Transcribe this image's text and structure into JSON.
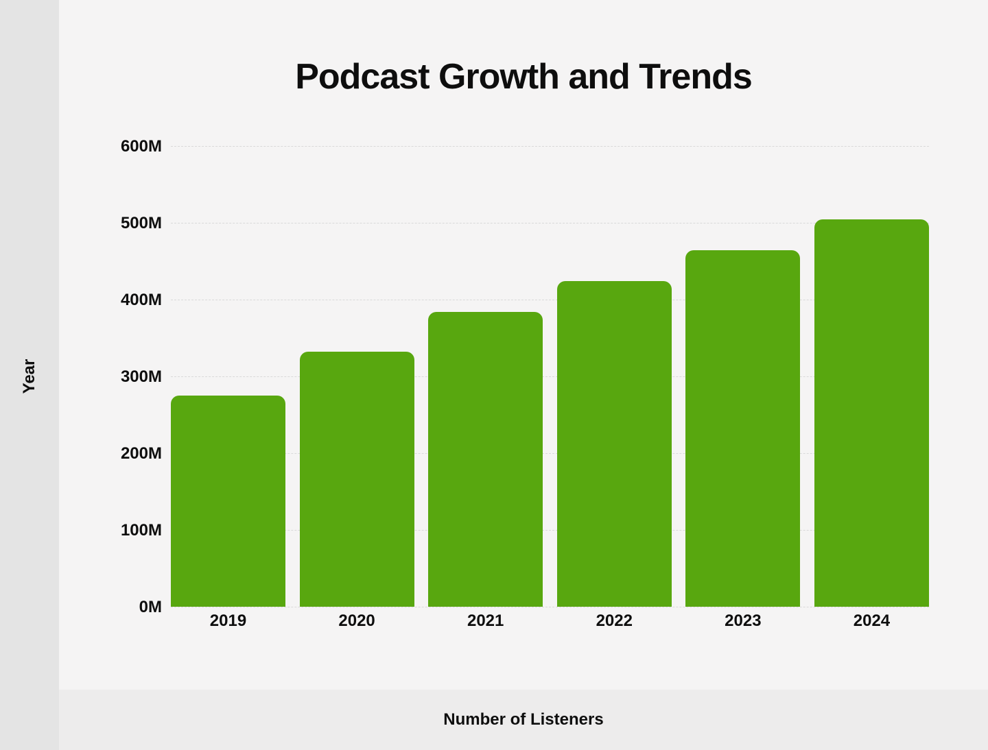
{
  "page": {
    "title": "Podcast Growth and Trends"
  },
  "colors": {
    "background": "#f5f4f4",
    "left_strip": "#e4e4e4",
    "bottom_strip": "#edecec",
    "text": "#0e0e0e",
    "gridline": "#d9d9d9",
    "bar": "#58a70f"
  },
  "chart_data": {
    "type": "bar",
    "title": "Podcast Growth and Trends",
    "categories": [
      "2019",
      "2020",
      "2021",
      "2022",
      "2023",
      "2024"
    ],
    "values": [
      274.8,
      332.2,
      383.7,
      424.2,
      464.7,
      504.9
    ],
    "unit": "M",
    "side_label": "Year",
    "bottom_label": "Number of Listeners",
    "ylim": [
      0,
      600
    ],
    "ytick_values": [
      600,
      500,
      400,
      300,
      200,
      100,
      0
    ],
    "ytick_labels": [
      "600M",
      "500M",
      "400M",
      "300M",
      "200M",
      "100M",
      "0M"
    ],
    "grid": true,
    "legend": false,
    "bar_color": "#58a70f"
  }
}
